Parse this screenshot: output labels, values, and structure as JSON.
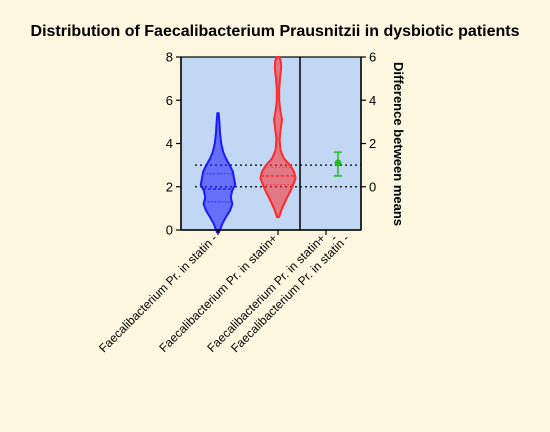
{
  "chart_data": {
    "type": "violin",
    "title": "Distribution of Faecalibacterium Prausnitzii in dysbiotic patients",
    "left_axis": {
      "ylim": [
        0,
        8
      ],
      "ticks": [
        0,
        2,
        4,
        6,
        8
      ]
    },
    "right_axis": {
      "label": "Difference between means",
      "ylim": [
        -2,
        6
      ],
      "ticks": [
        0,
        2,
        4,
        6
      ]
    },
    "categories": [
      "Faecalibacterium Pr. in statin -",
      "Faecalibacterium Pr. in statin+",
      "Faecalibacterium Pr. in statin+",
      "-",
      "Faecalibacterium Pr. in statin -"
    ],
    "series": [
      {
        "category_index": 0,
        "color": "#1a1aff",
        "min": -0.1,
        "max": 5.4,
        "quartiles": [
          1.3,
          1.9,
          2.6
        ],
        "density": [
          [
            -0.1,
            0.05
          ],
          [
            0.3,
            0.22
          ],
          [
            0.6,
            0.4
          ],
          [
            0.9,
            0.6
          ],
          [
            1.2,
            0.72
          ],
          [
            1.5,
            0.64
          ],
          [
            1.8,
            0.7
          ],
          [
            2.1,
            0.86
          ],
          [
            2.4,
            0.8
          ],
          [
            2.7,
            0.74
          ],
          [
            3.0,
            0.58
          ],
          [
            3.3,
            0.4
          ],
          [
            3.6,
            0.26
          ],
          [
            4.0,
            0.16
          ],
          [
            4.5,
            0.1
          ],
          [
            5.0,
            0.07
          ],
          [
            5.4,
            0.03
          ]
        ]
      },
      {
        "category_index": 1,
        "color": "#ff2a2a",
        "min": 0.6,
        "max": 8.0,
        "quartiles": [
          2.1,
          2.5,
          2.9
        ],
        "density": [
          [
            0.6,
            0.05
          ],
          [
            1.0,
            0.2
          ],
          [
            1.4,
            0.4
          ],
          [
            1.8,
            0.62
          ],
          [
            2.1,
            0.76
          ],
          [
            2.4,
            0.88
          ],
          [
            2.7,
            0.8
          ],
          [
            3.0,
            0.6
          ],
          [
            3.3,
            0.3
          ],
          [
            3.7,
            0.12
          ],
          [
            4.2,
            0.08
          ],
          [
            4.7,
            0.14
          ],
          [
            5.1,
            0.2
          ],
          [
            5.5,
            0.12
          ],
          [
            6.0,
            0.06
          ],
          [
            6.5,
            0.06
          ],
          [
            7.0,
            0.1
          ],
          [
            7.5,
            0.16
          ],
          [
            7.8,
            0.14
          ],
          [
            8.0,
            0.06
          ]
        ]
      }
    ],
    "difference": {
      "category_index": 3,
      "color": "#22bb22",
      "mean": 1.1,
      "ci": [
        0.5,
        1.6
      ]
    },
    "reference_lines_left_axis": [
      2,
      3
    ],
    "grid": false,
    "background": "#c2d7f4",
    "page_background": "#fdf7e0"
  }
}
